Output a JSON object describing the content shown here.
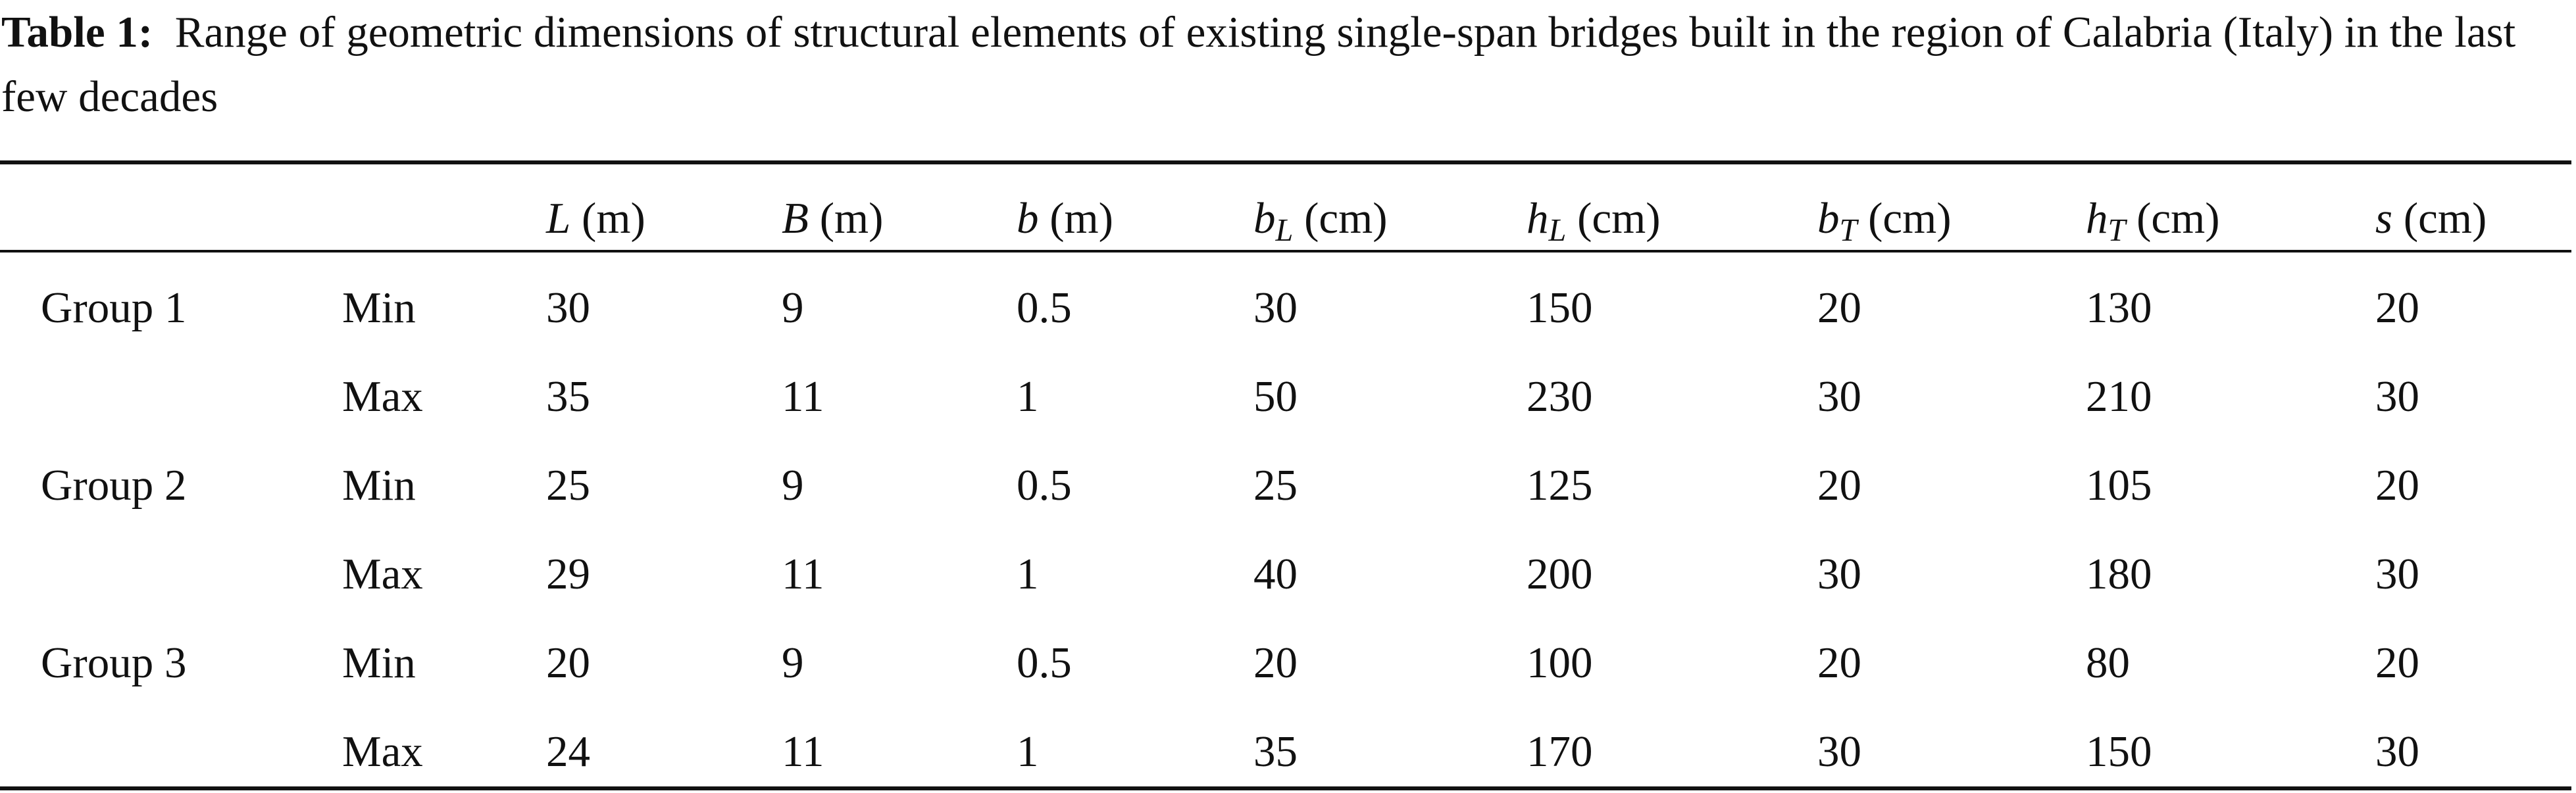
{
  "caption": {
    "label": "Table 1:",
    "text": "Range of geometric dimensions of structural elements of existing single-span bridges built in the region of Calabria (Italy) in the last few decades"
  },
  "columns": [
    {
      "symbol": "L",
      "sub": "",
      "unit": " (m)"
    },
    {
      "symbol": "B",
      "sub": "",
      "unit": " (m)"
    },
    {
      "symbol": "b",
      "sub": "",
      "unit": " (m)"
    },
    {
      "symbol": "b",
      "sub": "L",
      "unit": " (cm)"
    },
    {
      "symbol": "h",
      "sub": "L",
      "unit": " (cm)"
    },
    {
      "symbol": "b",
      "sub": "T",
      "unit": " (cm)"
    },
    {
      "symbol": "h",
      "sub": "T",
      "unit": " (cm)"
    },
    {
      "symbol": "s",
      "sub": "",
      "unit": " (cm)"
    }
  ],
  "rows": [
    {
      "group": "Group 1",
      "stat": "Min",
      "values": [
        "30",
        "9",
        "0.5",
        "30",
        "150",
        "20",
        "130",
        "20"
      ]
    },
    {
      "group": "",
      "stat": "Max",
      "values": [
        "35",
        "11",
        "1",
        "50",
        "230",
        "30",
        "210",
        "30"
      ]
    },
    {
      "group": "Group 2",
      "stat": "Min",
      "values": [
        "25",
        "9",
        "0.5",
        "25",
        "125",
        "20",
        "105",
        "20"
      ]
    },
    {
      "group": "",
      "stat": "Max",
      "values": [
        "29",
        "11",
        "1",
        "40",
        "200",
        "30",
        "180",
        "30"
      ]
    },
    {
      "group": "Group 3",
      "stat": "Min",
      "values": [
        "20",
        "9",
        "0.5",
        "20",
        "100",
        "20",
        "80",
        "20"
      ]
    },
    {
      "group": "",
      "stat": "Max",
      "values": [
        "24",
        "11",
        "1",
        "35",
        "170",
        "30",
        "150",
        "30"
      ]
    }
  ]
}
